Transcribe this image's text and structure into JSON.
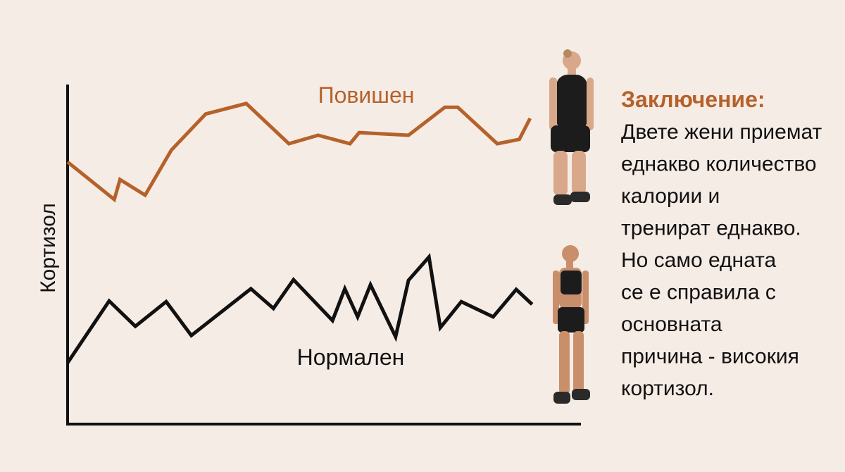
{
  "chart_data": {
    "type": "line",
    "y_label": "Кортизол",
    "xlim": [
      0,
      100
    ],
    "ylim": [
      0,
      100
    ],
    "series": [
      {
        "name": "Повишен",
        "color": "#b5622a",
        "x": [
          0,
          9.1,
          10.2,
          15.1,
          20.2,
          26.9,
          34.8,
          43.1,
          48.8,
          55,
          56.8,
          66.4,
          73.5,
          76,
          83.7,
          88,
          90.1
        ],
        "values": [
          77.1,
          66,
          71.9,
          67.3,
          80.6,
          91.3,
          94.4,
          82.5,
          85,
          82.5,
          85.8,
          85,
          93.3,
          93.3,
          82.5,
          83.8,
          90
        ]
      },
      {
        "name": "Нормален",
        "color": "#111111",
        "x": [
          0,
          8.1,
          13.2,
          19.2,
          24.1,
          35.7,
          40.1,
          44,
          51.6,
          54,
          56.5,
          59,
          63.9,
          66.4,
          70.4,
          72.6,
          76.7,
          82.9,
          87.4,
          90.5
        ],
        "values": [
          17.7,
          36,
          28.5,
          35.8,
          25.8,
          39.6,
          33.8,
          42.3,
          30.2,
          39.6,
          31.3,
          40.8,
          25.4,
          42.1,
          49,
          28.1,
          35.8,
          31.3,
          39.4,
          35
        ]
      }
    ]
  },
  "conclusion": {
    "title": "Заключение:",
    "lines": [
      "Двете жени приемат",
      "еднакво количество",
      "калории и",
      "тренират еднакво.",
      "Но само едната",
      "се е справила с",
      "основната",
      "причина - високия",
      "кортизол."
    ]
  }
}
